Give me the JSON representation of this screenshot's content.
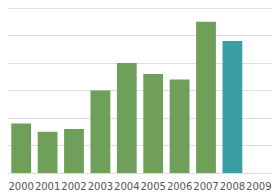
{
  "chart_data": {
    "type": "bar",
    "categories": [
      "2000",
      "2001",
      "2002",
      "2003",
      "2004",
      "2005",
      "2006",
      "2007",
      "2008",
      "2009"
    ],
    "values": [
      18,
      15,
      16,
      30,
      40,
      36,
      34,
      55,
      48,
      0
    ],
    "colors": [
      "#6fa05a",
      "#6fa05a",
      "#6fa05a",
      "#6fa05a",
      "#6fa05a",
      "#6fa05a",
      "#6fa05a",
      "#6fa05a",
      "#3a9ea5",
      "#6fa05a"
    ],
    "ylim": [
      0,
      60
    ],
    "yticks": [
      0,
      10,
      20,
      30,
      40,
      50,
      60
    ],
    "grid": true,
    "tick_labels": "x"
  }
}
